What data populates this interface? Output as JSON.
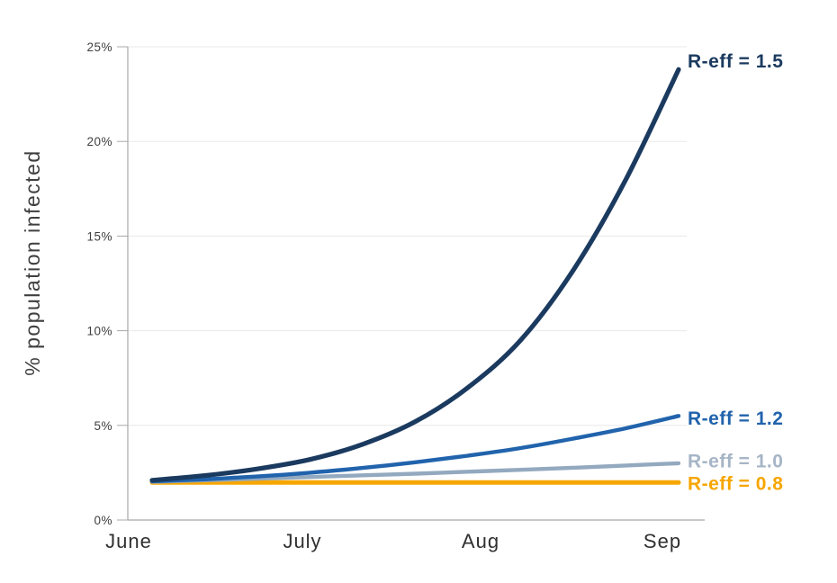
{
  "chart_data": {
    "type": "line",
    "title": "",
    "xlabel": "",
    "ylabel": "% population infected",
    "x_tick_labels": [
      "June",
      "July",
      "Aug",
      "Sep"
    ],
    "y_tick_labels": [
      "0%",
      "5%",
      "10%",
      "15%",
      "20%",
      "25%"
    ],
    "y_tick_values": [
      0,
      5,
      10,
      15,
      20,
      25
    ],
    "ylim": [
      0,
      25
    ],
    "grid": "horizontal gridlines at each 5%, light gray",
    "legend_position": "inline labels at right end of each line",
    "x_normalized": [
      0,
      0.1,
      0.2,
      0.3,
      0.4,
      0.5,
      0.6,
      0.7,
      0.8,
      0.9,
      1.0
    ],
    "x_range_note": "x runs from early June to early September; values in % of population infected",
    "series": [
      {
        "name": "R-eff = 1.5",
        "color": "#1B3A5F",
        "label_color": "#1B3A5F",
        "end_value": 23.8,
        "values": [
          2.1,
          2.35,
          2.7,
          3.2,
          4.0,
          5.2,
          7.0,
          9.5,
          13.2,
          18.0,
          23.8
        ]
      },
      {
        "name": "R-eff = 1.2",
        "color": "#2163AC",
        "label_color": "#2163AC",
        "end_value": 5.5,
        "values": [
          2.05,
          2.15,
          2.3,
          2.5,
          2.75,
          3.05,
          3.4,
          3.8,
          4.3,
          4.85,
          5.5
        ]
      },
      {
        "name": "R-eff = 1.0",
        "color": "#93A9BF",
        "label_color": "#A6B5C6",
        "end_value": 3.0,
        "values": [
          2.02,
          2.1,
          2.18,
          2.27,
          2.36,
          2.45,
          2.55,
          2.65,
          2.76,
          2.88,
          3.0
        ]
      },
      {
        "name": "R-eff = 0.8",
        "color": "#F7A600",
        "label_color": "#F7A600",
        "end_value": 2.0,
        "values": [
          1.98,
          1.98,
          1.98,
          1.98,
          1.98,
          1.98,
          1.98,
          1.98,
          1.98,
          1.98,
          1.98
        ]
      }
    ],
    "colors": {
      "axis": "#A8A8A8",
      "grid": "#E8E8E8",
      "tick_text": "#3F3F3F",
      "month_text": "#303030",
      "background": "#FFFFFF"
    }
  }
}
